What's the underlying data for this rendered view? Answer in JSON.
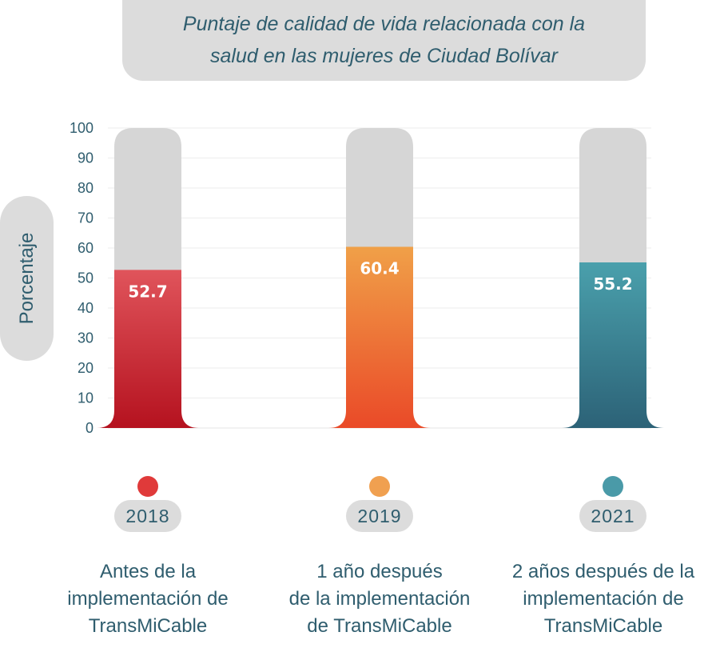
{
  "chart_data": {
    "type": "bar",
    "title": "Puntaje de calidad de vida relacionada con la salud en las mujeres de Ciudad Bolívar",
    "ylabel": "Porcentaje",
    "ylim": [
      0,
      100
    ],
    "yticks": [
      "0",
      "10",
      "20",
      "30",
      "40",
      "50",
      "60",
      "70",
      "80",
      "90",
      "100"
    ],
    "categories": [
      "2018",
      "2019",
      "2021"
    ],
    "values": [
      52.7,
      60.4,
      55.2
    ],
    "value_labels": [
      "52.7",
      "60.4",
      "55.2"
    ],
    "category_descriptions": [
      [
        "Antes de la",
        "implementación de",
        "TransMiCable"
      ],
      [
        "1 año después",
        "de la implementación",
        "de TransMiCable"
      ],
      [
        "2 años después de la",
        "implementación de",
        "TransMiCable"
      ]
    ],
    "colors": {
      "2018": {
        "top": "#e0545b",
        "bottom": "#b5121f",
        "dot": "#e03a3a"
      },
      "2019": {
        "top": "#f0a048",
        "bottom": "#ea4a28",
        "dot": "#f0a050"
      },
      "2021": {
        "top": "#4aa0ac",
        "bottom": "#2c6277",
        "dot": "#4a9aa8"
      },
      "track": "#d6d6d6",
      "text": "#2f5d6e"
    },
    "grid": true
  },
  "title_lines": [
    "Puntaje de calidad de vida relacionada con la",
    "salud en las mujeres de Ciudad Bolívar"
  ]
}
